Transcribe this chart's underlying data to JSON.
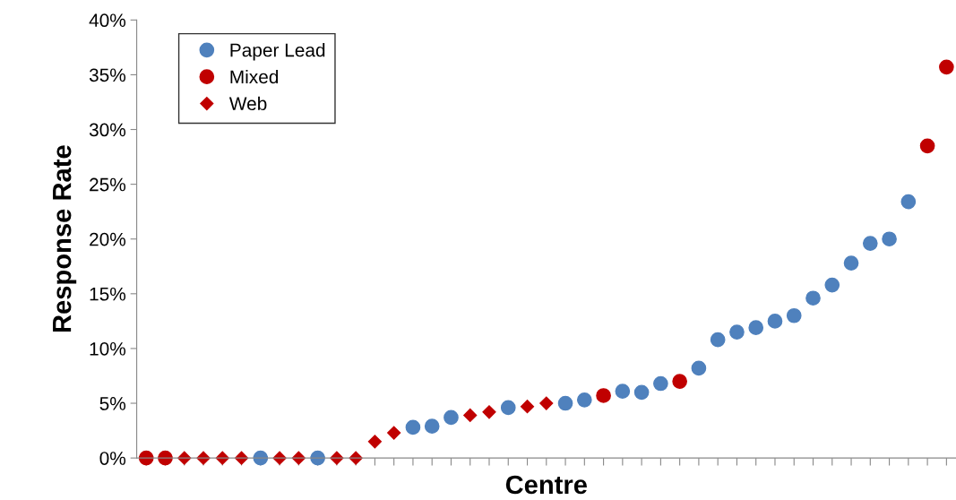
{
  "chart_data": {
    "type": "scatter",
    "xlabel": "Centre",
    "ylabel": "Response Rate",
    "categories": [
      null,
      null,
      null,
      null,
      null,
      null,
      null,
      null,
      null,
      null,
      null,
      null,
      null,
      null,
      null,
      null,
      null,
      null,
      null,
      null,
      null,
      null,
      null,
      null,
      null,
      null,
      null,
      null,
      null,
      null,
      null,
      null,
      null,
      null,
      null,
      null,
      null,
      null,
      null,
      null,
      null,
      null,
      null
    ],
    "series": [
      {
        "name": "Paper Lead",
        "color": "#4f81bd",
        "marker": "circle",
        "values": [
          null,
          null,
          null,
          null,
          null,
          null,
          0,
          null,
          null,
          0,
          null,
          null,
          null,
          null,
          2.8,
          2.9,
          3.7,
          null,
          null,
          4.6,
          null,
          null,
          5.0,
          5.3,
          null,
          6.1,
          6.0,
          6.8,
          null,
          8.2,
          10.8,
          11.5,
          11.9,
          12.5,
          13.0,
          14.6,
          15.8,
          17.8,
          19.6,
          20.0,
          23.4,
          null,
          null
        ]
      },
      {
        "name": "Mixed",
        "color": "#c00000",
        "marker": "circle",
        "values": [
          0,
          0,
          null,
          null,
          null,
          null,
          null,
          null,
          null,
          null,
          null,
          null,
          null,
          null,
          null,
          null,
          null,
          null,
          null,
          null,
          null,
          null,
          null,
          null,
          5.7,
          null,
          null,
          null,
          7.0,
          null,
          null,
          null,
          null,
          null,
          null,
          null,
          null,
          null,
          null,
          null,
          null,
          28.5,
          35.7
        ]
      },
      {
        "name": "Web",
        "color": "#c00000",
        "marker": "diamond",
        "values": [
          null,
          null,
          0,
          0,
          0,
          0,
          null,
          0,
          0,
          null,
          0,
          0,
          1.5,
          2.3,
          null,
          null,
          null,
          3.9,
          4.2,
          null,
          4.7,
          5.0,
          null,
          null,
          null,
          null,
          null,
          null,
          null,
          null,
          null,
          null,
          null,
          null,
          null,
          null,
          null,
          null,
          null,
          null,
          null,
          null,
          null
        ]
      }
    ],
    "ylim": [
      0,
      40
    ],
    "yticks": [
      {
        "value": 0,
        "label": "0%"
      },
      {
        "value": 5,
        "label": "5%"
      },
      {
        "value": 10,
        "label": "10%"
      },
      {
        "value": 15,
        "label": "15%"
      },
      {
        "value": 20,
        "label": "20%"
      },
      {
        "value": 25,
        "label": "25%"
      },
      {
        "value": 30,
        "label": "30%"
      },
      {
        "value": 35,
        "label": "35%"
      },
      {
        "value": 40,
        "label": "40%"
      }
    ],
    "grid": false,
    "legend": "top left",
    "tick_labels": "y"
  }
}
